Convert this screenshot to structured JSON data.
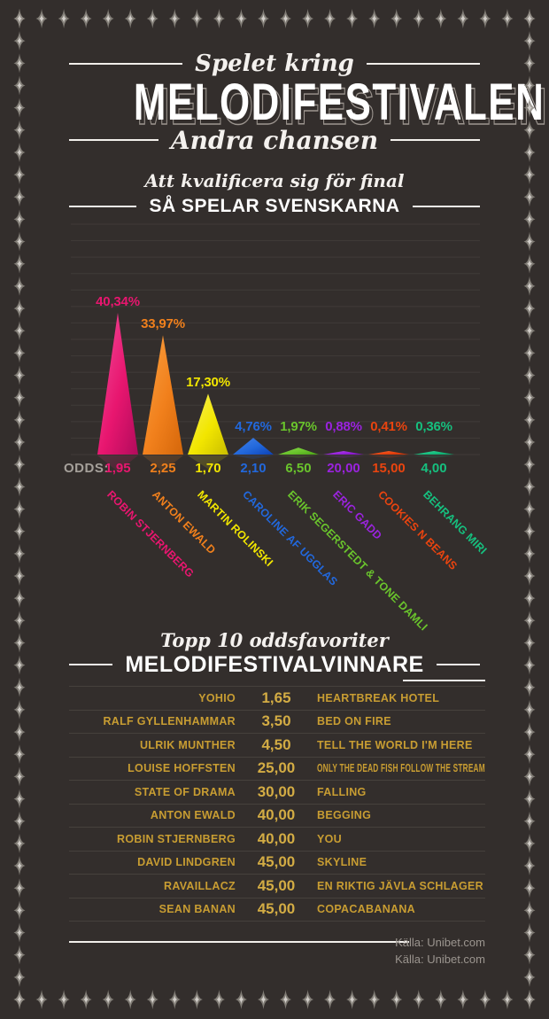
{
  "page": {
    "background": "#332e2c",
    "star_color": "#8e8983",
    "gold": "#c89d32"
  },
  "header": {
    "kicker": "Spelet kring",
    "title": "MELODIFESTIVALEN",
    "subtitle": "Andra chansen"
  },
  "section1": {
    "kicker": "Att kvalificera sig för final",
    "title": "SÅ SPELAR SVENSKARNA"
  },
  "chart_data": {
    "type": "bar",
    "style": "triangle-peaks",
    "title": "SÅ SPELAR SVENSKARNA",
    "subtitle": "Att kvalificera sig för final",
    "unit": "percent share of bets",
    "gridlines": true,
    "ylim": [
      0,
      45
    ],
    "odds_label": "ODDS:",
    "series": [
      {
        "artist": "ROBIN STJERNBERG",
        "share_pct": 40.34,
        "share_label": "40,34%",
        "odds": "1,95",
        "color": "#e8166f",
        "color_light": "#f14f9b",
        "color_dark": "#b10b5c"
      },
      {
        "artist": "ANTON EWALD",
        "share_pct": 33.97,
        "share_label": "33,97%",
        "odds": "2,25",
        "color": "#f1801c",
        "color_light": "#f9a243",
        "color_dark": "#d4660a"
      },
      {
        "artist": "MARTIN ROLINSKI",
        "share_pct": 17.3,
        "share_label": "17,30%",
        "odds": "1,70",
        "color": "#f2e600",
        "color_light": "#f7f160",
        "color_dark": "#c9bd00"
      },
      {
        "artist": "CAROLINE AF UGGLAS",
        "share_pct": 4.76,
        "share_label": "4,76%",
        "odds": "2,10",
        "color": "#2268dc",
        "color_light": "#4583e8",
        "color_dark": "#0c41b5"
      },
      {
        "artist": "ERIK SEGERSTEDT & TONE DAMLI",
        "share_pct": 1.97,
        "share_label": "1,97%",
        "odds": "6,50",
        "color": "#6ac42c",
        "color_light": "#87d74a",
        "color_dark": "#4aa315"
      },
      {
        "artist": "ERIC GADD",
        "share_pct": 0.88,
        "share_label": "0,88%",
        "odds": "20,00",
        "color": "#9a23de",
        "color_light": "#b04ae9",
        "color_dark": "#7a10bd"
      },
      {
        "artist": "COOKIES N BEANS",
        "share_pct": 0.41,
        "share_label": "0,41%",
        "odds": "15,00",
        "color": "#e9440f",
        "color_light": "#f26a37",
        "color_dark": "#c53106"
      },
      {
        "artist": "BEHRANG MIRI",
        "share_pct": 0.36,
        "share_label": "0,36%",
        "odds": "4,00",
        "color": "#16c07f",
        "color_light": "#3cd49c",
        "color_dark": "#0b9d66"
      }
    ]
  },
  "section2": {
    "kicker": "Topp 10 oddsfavoriter",
    "title": "MELODIFESTIVALVINNARE"
  },
  "table": {
    "rows": [
      {
        "artist": "YOHIO",
        "odds": "1,65",
        "song": "HEARTBREAK HOTEL"
      },
      {
        "artist": "RALF GYLLENHAMMAR",
        "odds": "3,50",
        "song": "BED ON FIRE"
      },
      {
        "artist": "ULRIK MUNTHER",
        "odds": "4,50",
        "song": "TELL THE WORLD I'M HERE"
      },
      {
        "artist": "LOUISE HOFFSTEN",
        "odds": "25,00",
        "song": "ONLY THE DEAD FISH FOLLOW THE STREAM"
      },
      {
        "artist": "STATE OF DRAMA",
        "odds": "30,00",
        "song": "FALLING"
      },
      {
        "artist": "ANTON EWALD",
        "odds": "40,00",
        "song": "BEGGING"
      },
      {
        "artist": "ROBIN STJERNBERG",
        "odds": "40,00",
        "song": "YOU"
      },
      {
        "artist": "DAVID LINDGREN",
        "odds": "45,00",
        "song": "SKYLINE"
      },
      {
        "artist": "RAVAILLACZ",
        "odds": "45,00",
        "song": "EN RIKTIG JÄVLA SCHLAGER"
      },
      {
        "artist": "SEAN BANAN",
        "odds": "45,00",
        "song": "COPACABANANA"
      }
    ]
  },
  "footer": {
    "source1": "Källa: Unibet.com",
    "source2": "Källa: Unibet.com"
  }
}
